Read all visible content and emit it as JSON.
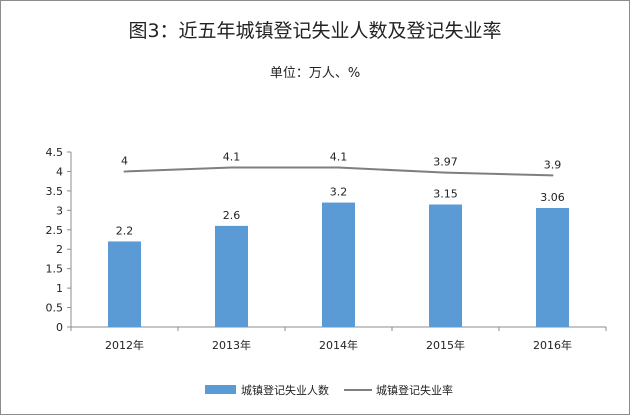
{
  "title": "图3：近五年城镇登记失业人数及登记失业率",
  "subtitle": "单位：万人、%",
  "colors": {
    "bar": "#5b9bd5",
    "line": "#7f7f7f",
    "axis": "#8c8c8c"
  },
  "chart_data": {
    "type": "bar",
    "categories": [
      "2012年",
      "2013年",
      "2014年",
      "2015年",
      "2016年"
    ],
    "series": [
      {
        "name": "城镇登记失业人数",
        "type": "bar",
        "values": [
          2.2,
          2.6,
          3.2,
          3.15,
          3.06
        ],
        "labels": [
          "2.2",
          "2.6",
          "3.2",
          "3.15",
          "3.06"
        ]
      },
      {
        "name": "城镇登记失业率",
        "type": "line",
        "values": [
          4,
          4.1,
          4.1,
          3.97,
          3.9
        ],
        "labels": [
          "4",
          "4.1",
          "4.1",
          "3.97",
          "3.9"
        ]
      }
    ],
    "yticks": [
      "0",
      "0.5",
      "1",
      "1.5",
      "2",
      "2.5",
      "3",
      "3.5",
      "4",
      "4.5"
    ],
    "ylim": [
      0,
      4.5
    ],
    "grid": false,
    "legend": "bottom"
  }
}
